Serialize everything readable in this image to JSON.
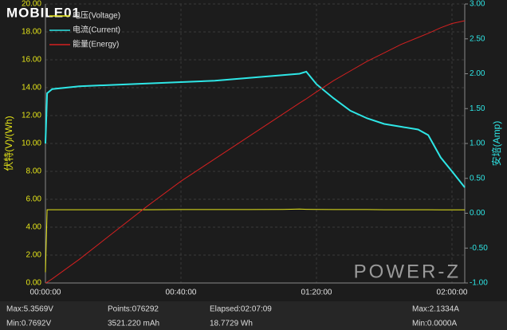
{
  "chart_data": {
    "type": "line",
    "x": [
      0,
      30,
      120,
      600,
      1200,
      1800,
      2400,
      3000,
      3600,
      4200,
      4500,
      4620,
      4800,
      5100,
      5400,
      5700,
      6000,
      6300,
      6600,
      6780,
      7000,
      7200,
      7426
    ],
    "xlim": [
      0,
      7426
    ],
    "xticks": [
      {
        "value": 0,
        "label": "00:00:00"
      },
      {
        "value": 2400,
        "label": "00:40:00"
      },
      {
        "value": 4800,
        "label": "01:20:00"
      },
      {
        "value": 7200,
        "label": "02:00:00"
      }
    ],
    "ylim": [
      0,
      20
    ],
    "yticks": [
      {
        "value": 0,
        "label": "0.00"
      },
      {
        "value": 2,
        "label": "2.00"
      },
      {
        "value": 4,
        "label": "4.00"
      },
      {
        "value": 6,
        "label": "6.00"
      },
      {
        "value": 8,
        "label": "8.00"
      },
      {
        "value": 10,
        "label": "10.00"
      },
      {
        "value": 12,
        "label": "12.00"
      },
      {
        "value": 14,
        "label": "14.00"
      },
      {
        "value": 16,
        "label": "16.00"
      },
      {
        "value": 18,
        "label": "18.00"
      },
      {
        "value": 20,
        "label": "20.00"
      }
    ],
    "y2lim": [
      -1,
      3
    ],
    "y2ticks": [
      {
        "value": -1,
        "label": "-1.00"
      },
      {
        "value": -0.5,
        "label": "-0.50"
      },
      {
        "value": 0,
        "label": "0.00"
      },
      {
        "value": 0.5,
        "label": "0.50"
      },
      {
        "value": 1,
        "label": "1.00"
      },
      {
        "value": 1.5,
        "label": "1.50"
      },
      {
        "value": 2,
        "label": "2.00"
      },
      {
        "value": 2.5,
        "label": "2.50"
      },
      {
        "value": 3,
        "label": "3.00"
      }
    ],
    "ylabel": "伏特(V)/(Wh)",
    "y2label": "安培(Amp)",
    "grid": true,
    "legend": "top-left",
    "series": [
      {
        "name": "电压(Voltage)",
        "color": "#e6e619",
        "values": [
          0.77,
          5.25,
          5.25,
          5.25,
          5.25,
          5.25,
          5.26,
          5.26,
          5.26,
          5.27,
          5.3,
          5.28,
          5.27,
          5.26,
          5.26,
          5.26,
          5.25,
          5.25,
          5.25,
          5.25,
          5.24,
          5.24,
          5.24
        ]
      },
      {
        "name": "电流(Current)",
        "color": "#2ee6e6",
        "axis": "y2",
        "values": [
          1.0,
          1.72,
          1.78,
          1.82,
          1.84,
          1.86,
          1.88,
          1.9,
          1.94,
          1.98,
          2.0,
          2.03,
          1.85,
          1.65,
          1.47,
          1.36,
          1.28,
          1.24,
          1.2,
          1.12,
          0.8,
          0.6,
          0.37
        ]
      },
      {
        "name": "能量(Energy)",
        "color": "#d42020",
        "values": [
          0,
          0.05,
          0.3,
          1.7,
          3.6,
          5.5,
          7.3,
          8.9,
          10.5,
          12.1,
          12.9,
          13.2,
          13.7,
          14.5,
          15.2,
          15.9,
          16.5,
          17.1,
          17.6,
          17.9,
          18.3,
          18.6,
          18.8
        ]
      }
    ],
    "watermarks": [
      "MOBILE01",
      "POWER-Z"
    ]
  },
  "footer": {
    "stats": [
      "Max:5.3569V",
      "Min:0.7692V",
      "Points:076292",
      "3521.220 mAh",
      "Elapsed:02:07:09",
      "18.7729 Wh",
      "Max:2.1334A",
      "Min:0.0000A"
    ]
  }
}
